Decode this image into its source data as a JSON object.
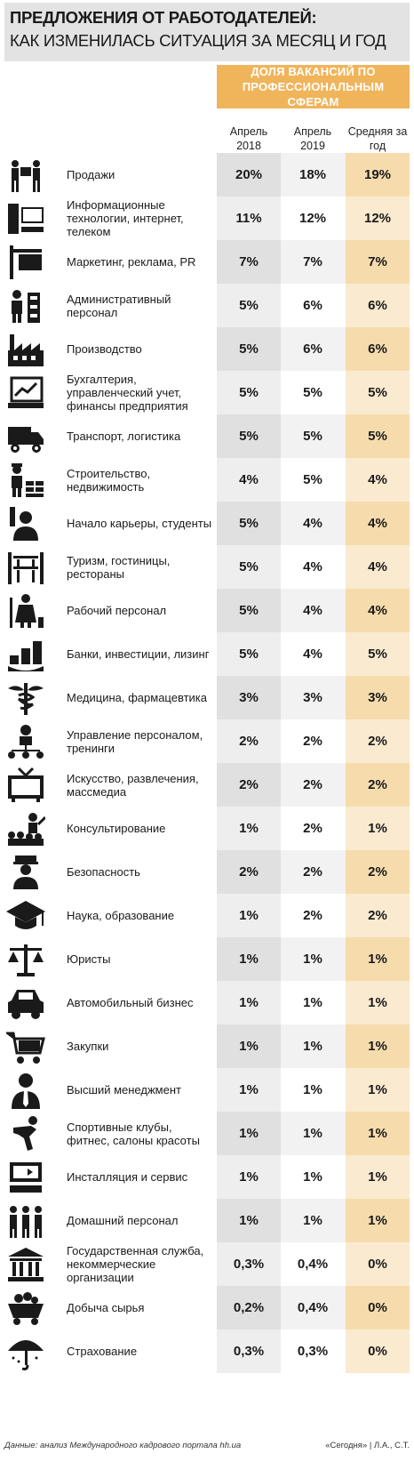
{
  "header": {
    "title_line1": "ПРЕДЛОЖЕНИЯ ОТ РАБОТОДАТЕЛЕЙ:",
    "title_line2": "КАК ИЗМЕНИЛАСЬ СИТУАЦИЯ ЗА МЕСЯЦ И ГОД",
    "group_header": "ДОЛЯ ВАКАНСИЙ ПО ПРОФЕССИОНАЛЬНЫМ СФЕРАМ"
  },
  "colors": {
    "accent": "#f0b45b",
    "col_a": "#e0e0e0",
    "col_c": "#f6dcad"
  },
  "chart_data": {
    "type": "table",
    "columns": [
      "Апрель 2018",
      "Апрель 2019",
      "Средняя за год"
    ],
    "rows": [
      {
        "icon": "sales-icon",
        "label": "Продажи",
        "values": [
          "20%",
          "18%",
          "19%"
        ]
      },
      {
        "icon": "computer-icon",
        "label": "Информационные технологии, интернет, телеком",
        "values": [
          "11%",
          "12%",
          "12%"
        ]
      },
      {
        "icon": "signboard-icon",
        "label": "Маркетинг, реклама, PR",
        "values": [
          "7%",
          "7%",
          "7%"
        ]
      },
      {
        "icon": "office-worker-icon",
        "label": "Административный персонал",
        "values": [
          "5%",
          "6%",
          "6%"
        ]
      },
      {
        "icon": "factory-icon",
        "label": "Производство",
        "values": [
          "5%",
          "6%",
          "6%"
        ]
      },
      {
        "icon": "accounting-chart-icon",
        "label": "Бухгалтерия, управленческий учет, финансы предприятия",
        "values": [
          "5%",
          "5%",
          "5%"
        ]
      },
      {
        "icon": "truck-icon",
        "label": "Транспорт, логистика",
        "values": [
          "5%",
          "5%",
          "5%"
        ]
      },
      {
        "icon": "builder-icon",
        "label": "Строительство, недвижимость",
        "values": [
          "4%",
          "5%",
          "4%"
        ]
      },
      {
        "icon": "student-icon",
        "label": "Начало карьеры, студенты",
        "values": [
          "5%",
          "4%",
          "4%"
        ]
      },
      {
        "icon": "hotel-icon",
        "label": "Туризм, гостиницы, рестораны",
        "values": [
          "5%",
          "4%",
          "4%"
        ]
      },
      {
        "icon": "worker-icon",
        "label": "Рабочий персонал",
        "values": [
          "5%",
          "4%",
          "4%"
        ]
      },
      {
        "icon": "coins-icon",
        "label": "Банки, инвестиции, лизинг",
        "values": [
          "5%",
          "4%",
          "5%"
        ]
      },
      {
        "icon": "caduceus-icon",
        "label": "Медицина, фармацевтика",
        "values": [
          "3%",
          "3%",
          "3%"
        ]
      },
      {
        "icon": "hr-icon",
        "label": "Управление персоналом, тренинги",
        "values": [
          "2%",
          "2%",
          "2%"
        ]
      },
      {
        "icon": "tv-icon",
        "label": "Искусство, развлечения, массмедиа",
        "values": [
          "2%",
          "2%",
          "2%"
        ]
      },
      {
        "icon": "presentation-icon",
        "label": "Консультирование",
        "values": [
          "1%",
          "2%",
          "1%"
        ]
      },
      {
        "icon": "guard-icon",
        "label": "Безопасность",
        "values": [
          "2%",
          "2%",
          "2%"
        ]
      },
      {
        "icon": "graduation-cap-icon",
        "label": "Наука, образование",
        "values": [
          "1%",
          "2%",
          "2%"
        ]
      },
      {
        "icon": "scales-icon",
        "label": "Юристы",
        "values": [
          "1%",
          "1%",
          "1%"
        ]
      },
      {
        "icon": "car-icon",
        "label": "Автомобильный бизнес",
        "values": [
          "1%",
          "1%",
          "1%"
        ]
      },
      {
        "icon": "cart-icon",
        "label": "Закупки",
        "values": [
          "1%",
          "1%",
          "1%"
        ]
      },
      {
        "icon": "manager-icon",
        "label": "Высший менеджмент",
        "values": [
          "1%",
          "1%",
          "1%"
        ]
      },
      {
        "icon": "fitness-icon",
        "label": "Спортивные клубы, фитнес, салоны красоты",
        "values": [
          "1%",
          "1%",
          "1%"
        ]
      },
      {
        "icon": "installation-icon",
        "label": "Инсталляция и сервис",
        "values": [
          "1%",
          "1%",
          "1%"
        ]
      },
      {
        "icon": "household-icon",
        "label": "Домашний персонал",
        "values": [
          "1%",
          "1%",
          "1%"
        ]
      },
      {
        "icon": "government-building-icon",
        "label": "Государственная служба, некоммерческие организации",
        "values": [
          "0,3%",
          "0,4%",
          "0%"
        ]
      },
      {
        "icon": "mining-cart-icon",
        "label": "Добыча сырья",
        "values": [
          "0,2%",
          "0,4%",
          "0%"
        ]
      },
      {
        "icon": "umbrella-icon",
        "label": "Страхование",
        "values": [
          "0,3%",
          "0,3%",
          "0%"
        ]
      }
    ]
  },
  "footer": {
    "source": "Данные: анализ Международного кадрового портала hh.ua",
    "credit": "«Сегодня» | Л.А., С.Т."
  }
}
